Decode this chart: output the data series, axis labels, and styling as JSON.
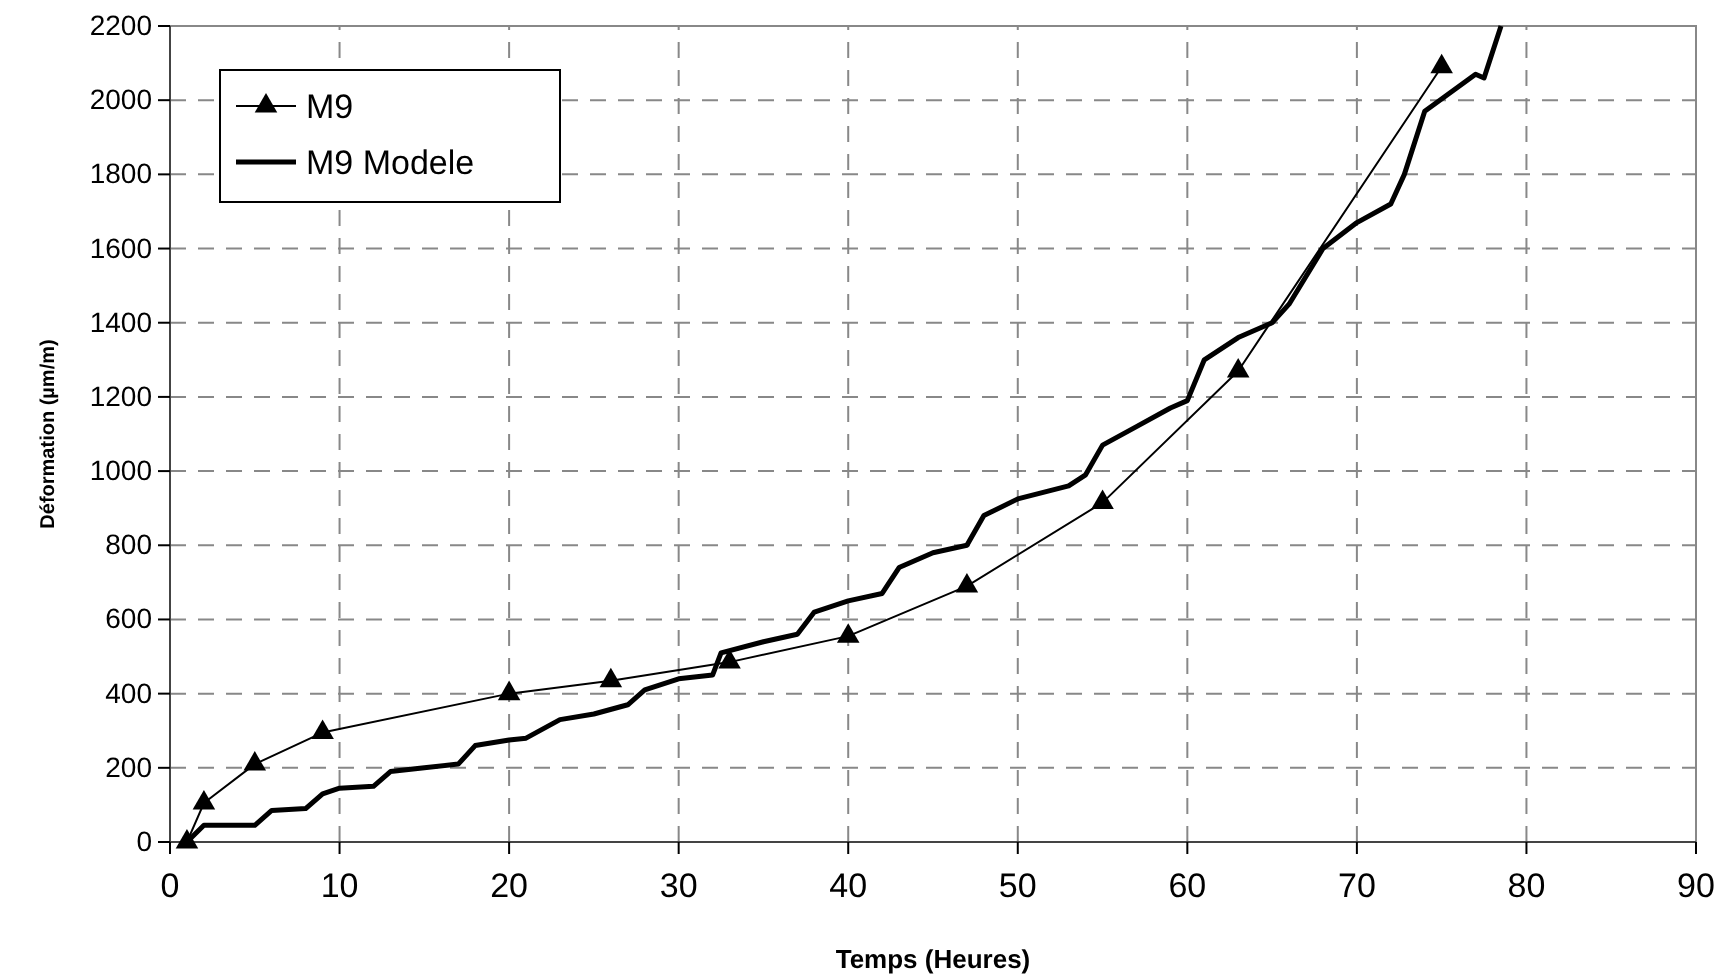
{
  "chart_data": {
    "type": "line",
    "xlabel": "Temps (Heures)",
    "ylabel": "Déformation (µm/m)",
    "xlim": [
      0,
      90
    ],
    "xticks": [
      0,
      10,
      20,
      30,
      40,
      50,
      60,
      70,
      80,
      90
    ],
    "ylim": [
      0,
      2200
    ],
    "yticks": [
      0,
      200,
      400,
      600,
      800,
      1000,
      1200,
      1400,
      1600,
      1800,
      2000,
      2200
    ],
    "grid": true,
    "legend": "top left",
    "series": [
      {
        "name": "M9",
        "color": "#000000",
        "marker": "triangle",
        "x": [
          1,
          2,
          5,
          9,
          20,
          26,
          33,
          40,
          47,
          55,
          63,
          75
        ],
        "values": [
          0,
          105,
          210,
          295,
          400,
          435,
          485,
          555,
          690,
          915,
          1270,
          2090
        ]
      },
      {
        "name": "M9 Modele",
        "color": "#000000",
        "marker": "none",
        "x": [
          1,
          2,
          5,
          6,
          8,
          9,
          10,
          12,
          13,
          15,
          17,
          18,
          20,
          21,
          23,
          25,
          27,
          28,
          30,
          32,
          32.5,
          35,
          37,
          38,
          40,
          42,
          43,
          45,
          47,
          48,
          50,
          53,
          54,
          55,
          57,
          59,
          60,
          61,
          63,
          65,
          66,
          68,
          70,
          72,
          72.8,
          74,
          75.5,
          77,
          77.5,
          78.5
        ],
        "values": [
          0,
          45,
          45,
          85,
          90,
          130,
          145,
          150,
          190,
          200,
          210,
          260,
          275,
          280,
          330,
          345,
          370,
          410,
          440,
          450,
          510,
          540,
          560,
          620,
          650,
          670,
          740,
          780,
          800,
          880,
          925,
          960,
          990,
          1070,
          1120,
          1170,
          1190,
          1300,
          1360,
          1400,
          1450,
          1600,
          1670,
          1720,
          1800,
          1970,
          2020,
          2070,
          2060,
          2200
        ]
      }
    ]
  }
}
